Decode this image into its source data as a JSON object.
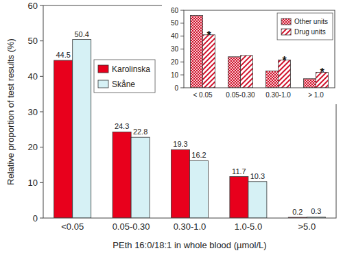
{
  "chart_data": [
    {
      "type": "bar",
      "xlabel": "PEth 16:0/18:1 in whole blood (µmol/L)",
      "ylabel": "Relative proportion of test results (%)",
      "categories": [
        "<0.05",
        "0.05-0.30",
        "0.30-1.0",
        "1.0-5.0",
        ">5.0"
      ],
      "series": [
        {
          "name": "Karolinska",
          "color": "#e8001c",
          "values": [
            44.5,
            24.3,
            19.3,
            11.7,
            0.2
          ]
        },
        {
          "name": "Skåne",
          "color": "#d6f1f5",
          "values": [
            50.4,
            22.8,
            16.2,
            10.3,
            0.3
          ]
        }
      ],
      "ylim": [
        0,
        60
      ],
      "yticks": [
        0,
        10,
        20,
        30,
        40,
        50,
        60
      ],
      "data_labels": true,
      "legend": "upper left",
      "grid": false
    },
    {
      "type": "bar",
      "categories": [
        "< 0.05",
        "0.05-0.30",
        "0.30-1.0",
        "> 1.0"
      ],
      "series": [
        {
          "name": "Other units",
          "color": "#d0102a",
          "values": [
            56,
            24,
            13,
            7
          ]
        },
        {
          "name": "Drug units",
          "color": "#d0102a",
          "values": [
            41,
            25,
            21.5,
            12
          ]
        }
      ],
      "ylim": [
        0,
        60
      ],
      "yticks": [
        0,
        10,
        20,
        30,
        40,
        50,
        60
      ],
      "annotations": [
        {
          "text": "*",
          "category": "< 0.05",
          "series": "Drug units"
        },
        {
          "text": "*",
          "category": "0.30-1.0",
          "series": "Drug units"
        },
        {
          "text": "*",
          "category": "> 1.0",
          "series": "Drug units"
        }
      ],
      "legend": "upper right",
      "grid": false
    }
  ]
}
